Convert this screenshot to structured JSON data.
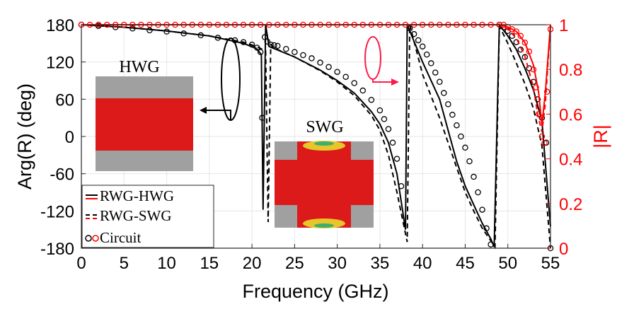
{
  "chart_data": {
    "type": "line",
    "xlabel": "Frequency (GHz)",
    "ylabel": "Arg(R) (deg)",
    "ylabel_right": "|R|",
    "xlim": [
      0,
      55
    ],
    "ylim": [
      -180,
      180
    ],
    "ylim_right": [
      0,
      1
    ],
    "xticks": [
      "0",
      "5",
      "10",
      "15",
      "20",
      "25",
      "30",
      "35",
      "40",
      "45",
      "50",
      "55"
    ],
    "yticks": [
      "-180",
      "-120",
      "-60",
      "0",
      "60",
      "120",
      "180"
    ],
    "yticks_right": [
      "0",
      "0.2",
      "0.4",
      "0.6",
      "0.8",
      "1"
    ],
    "grid": true,
    "legend_position": "bottom-left",
    "legend": [
      {
        "label": "RWG-HWG",
        "style": "solid"
      },
      {
        "label": "RWG-SWG",
        "style": "dashed"
      },
      {
        "label": "Circuit",
        "style": "markers"
      }
    ],
    "annotations": [
      "HWG",
      "SWG"
    ],
    "colors": {
      "phase": "#000000",
      "magnitude": "#ff0000",
      "grid": "#e6e6e6",
      "metal": "#a0a0a0",
      "field": "#dd1a1a"
    },
    "series": [
      {
        "name": "RWG-HWG",
        "axis": "left",
        "style": "solid",
        "x": [
          0,
          5,
          10,
          15,
          19,
          20.5,
          21.1,
          21.3,
          21.6,
          22,
          25,
          28,
          30,
          32,
          34,
          35,
          36,
          37,
          38,
          38.2,
          40,
          42,
          43,
          44,
          45,
          46,
          47,
          48,
          48.4,
          49,
          50,
          51,
          52,
          53,
          54,
          55
        ],
        "y": [
          180,
          176,
          170,
          162,
          150,
          142,
          132,
          -118,
          180,
          145,
          128,
          107,
          90,
          70,
          40,
          20,
          -10,
          -60,
          -150,
          180,
          120,
          60,
          10,
          -40,
          -80,
          -110,
          -140,
          -165,
          -178,
          180,
          162,
          140,
          110,
          75,
          25,
          -145
        ]
      },
      {
        "name": "RWG-SWG",
        "axis": "left",
        "style": "dashed",
        "x": [
          0,
          5,
          10,
          15,
          19,
          20.5,
          21.6,
          21.9,
          22.2,
          23,
          25,
          28,
          30,
          32,
          34,
          35,
          36,
          37,
          38.2,
          38.5,
          40,
          42,
          43,
          44,
          45,
          46,
          47,
          48.5,
          49,
          50,
          51,
          52,
          53,
          54,
          55
        ],
        "y": [
          180,
          176,
          170,
          162,
          152,
          145,
          138,
          -138,
          148,
          140,
          128,
          106,
          88,
          66,
          34,
          10,
          -30,
          -90,
          -170,
          180,
          100,
          30,
          -10,
          -50,
          -90,
          -120,
          -148,
          -178,
          178,
          150,
          118,
          85,
          45,
          -15,
          -180
        ]
      },
      {
        "name": "Circuit",
        "axis": "left",
        "style": "markers",
        "x": [
          0,
          2,
          4,
          6,
          8,
          10,
          12,
          14,
          16,
          18,
          19,
          20,
          20.6,
          21,
          21.2,
          21.5,
          21.8,
          22.2,
          22.6,
          23,
          24,
          25,
          26,
          27,
          28,
          29,
          30,
          31,
          32,
          33,
          34,
          35,
          35.5,
          36,
          36.5,
          37,
          37.5,
          38.5,
          39,
          39.5,
          40,
          40.5,
          41,
          41.5,
          42,
          42.5,
          43,
          43.5,
          44,
          44.5,
          45,
          45.5,
          46,
          46.5,
          47,
          47.5,
          48,
          49,
          49.5,
          50,
          50.5,
          51,
          51.5,
          52,
          52.5,
          53,
          53.5,
          54,
          54.5,
          55
        ],
        "y": [
          180,
          178,
          176,
          174,
          171,
          169,
          166,
          163,
          159,
          155,
          152,
          148,
          143,
          136,
          30,
          160,
          153,
          148,
          147,
          146,
          141,
          136,
          131,
          126,
          119,
          112,
          104,
          96,
          86,
          74,
          59,
          42,
          28,
          12,
          -10,
          -36,
          -80,
          174,
          165,
          155,
          145,
          132,
          118,
          103,
          88,
          70,
          52,
          35,
          18,
          0,
          -18,
          -40,
          -65,
          -90,
          -118,
          -148,
          -174,
          180,
          176,
          170,
          162,
          152,
          140,
          128,
          110,
          88,
          60,
          30,
          -10,
          -180
        ]
      },
      {
        "name": "",
        "axis": "right",
        "style": "solid",
        "x": [
          0,
          49,
          50,
          51,
          52,
          53,
          53.6,
          54,
          54.4,
          55
        ],
        "y": [
          1,
          1,
          0.99,
          0.97,
          0.92,
          0.82,
          0.7,
          0.55,
          0.7,
          1
        ]
      },
      {
        "name": "",
        "axis": "right",
        "style": "dashed",
        "x": [
          0,
          49,
          50,
          51,
          52,
          53,
          53.5,
          54,
          54.4,
          55
        ],
        "y": [
          1,
          1,
          0.98,
          0.94,
          0.86,
          0.72,
          0.6,
          0.52,
          0.65,
          1
        ]
      },
      {
        "name": "",
        "axis": "right",
        "style": "markers",
        "x": [
          0,
          1,
          2,
          3,
          4,
          5,
          6,
          7,
          8,
          9,
          10,
          11,
          12,
          13,
          14,
          15,
          16,
          17,
          18,
          19,
          20,
          21,
          22,
          23,
          24,
          25,
          26,
          27,
          28,
          29,
          30,
          31,
          32,
          33,
          34,
          35,
          36,
          37,
          38,
          39,
          40,
          41,
          42,
          43,
          44,
          45,
          46,
          47,
          48,
          49,
          49.5,
          50,
          50.5,
          51,
          51.5,
          52,
          52.5,
          53,
          53.3,
          53.6,
          54,
          54.3,
          54.6,
          55
        ],
        "y": [
          1,
          1,
          1,
          1,
          1,
          1,
          1,
          1,
          1,
          1,
          1,
          1,
          1,
          1,
          1,
          1,
          1,
          1,
          1,
          1,
          1,
          1,
          1,
          1,
          1,
          1,
          1,
          1,
          1,
          1,
          1,
          1,
          1,
          1,
          1,
          1,
          1,
          1,
          1,
          1,
          1,
          1,
          1,
          1,
          1,
          1,
          1,
          1,
          1,
          1,
          1,
          0.99,
          0.98,
          0.97,
          0.95,
          0.92,
          0.88,
          0.8,
          0.72,
          0.6,
          0.5,
          0.47,
          0.7,
          0.98
        ]
      }
    ]
  }
}
